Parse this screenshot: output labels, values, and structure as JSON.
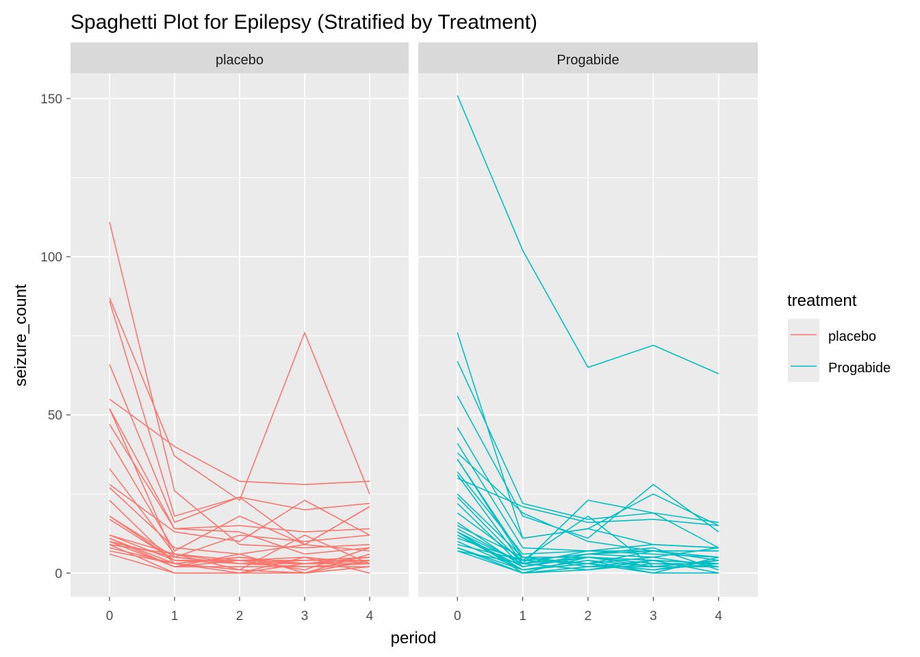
{
  "chart_data": {
    "type": "line",
    "title": "Spaghetti Plot for Epilepsy (Stratified by Treatment)",
    "xlabel": "period",
    "ylabel": "seizure_count",
    "x": [
      0,
      1,
      2,
      3,
      4
    ],
    "x_ticks": [
      "0",
      "1",
      "2",
      "3",
      "4"
    ],
    "y_ticks": [
      "0",
      "50",
      "100",
      "150"
    ],
    "xlim": [
      -0.6,
      4.6
    ],
    "ylim": [
      -7.5,
      158
    ],
    "grid": true,
    "legend": {
      "title": "treatment",
      "position": "right",
      "entries": [
        {
          "label": "placebo",
          "color": "#F8766D"
        },
        {
          "label": "Progabide",
          "color": "#00BFC4"
        }
      ]
    },
    "panels": [
      {
        "label": "placebo",
        "color": "#F8766D",
        "series": [
          {
            "values": [
              111,
              26,
              9,
              8,
              9
            ]
          },
          {
            "values": [
              87,
              37,
              23,
              76,
              25
            ]
          },
          {
            "values": [
              86,
              18,
              24,
              20,
              22
            ]
          },
          {
            "values": [
              66,
              16,
              24,
              9,
              21
            ]
          },
          {
            "values": [
              55,
              40,
              29,
              28,
              29
            ]
          },
          {
            "values": [
              52,
              14,
              15,
              13,
              14
            ]
          },
          {
            "values": [
              52,
              5,
              12,
              10,
              12
            ]
          },
          {
            "values": [
              47,
              14,
              13,
              6,
              8
            ]
          },
          {
            "values": [
              42,
              7,
              18,
              9,
              21
            ]
          },
          {
            "values": [
              33,
              6,
              4,
              5,
              3
            ]
          },
          {
            "values": [
              28,
              13,
              10,
              23,
              12
            ]
          },
          {
            "values": [
              27,
              8,
              6,
              9,
              7
            ]
          },
          {
            "values": [
              23,
              3,
              5,
              3,
              4
            ]
          },
          {
            "values": [
              18,
              5,
              3,
              3,
              3
            ]
          },
          {
            "values": [
              18,
              4,
              4,
              1,
              8
            ]
          },
          {
            "values": [
              17,
              4,
              4,
              3,
              4
            ]
          },
          {
            "values": [
              12,
              6,
              3,
              2,
              3
            ]
          },
          {
            "values": [
              12,
              4,
              3,
              4,
              4
            ]
          },
          {
            "values": [
              11,
              2,
              4,
              4,
              5
            ]
          },
          {
            "values": [
              10,
              2,
              2,
              2,
              2
            ]
          },
          {
            "values": [
              10,
              5,
              3,
              3,
              3
            ]
          },
          {
            "values": [
              9,
              0,
              0,
              3,
              5
            ]
          },
          {
            "values": [
              8,
              3,
              5,
              3,
              3
            ]
          },
          {
            "values": [
              7,
              3,
              0,
              0,
              4
            ]
          },
          {
            "values": [
              6,
              0,
              0,
              5,
              0
            ]
          },
          {
            "values": [
              11,
              3,
              1,
              12,
              3
            ]
          },
          {
            "values": [
              10,
              2,
              6,
              0,
              6
            ]
          },
          {
            "values": [
              9,
              6,
              1,
              0,
              2
            ]
          }
        ]
      },
      {
        "label": "Progabide",
        "color": "#00BFC4",
        "series": [
          {
            "values": [
              151,
              102,
              65,
              72,
              63
            ]
          },
          {
            "values": [
              76,
              11,
              14,
              9,
              8
            ]
          },
          {
            "values": [
              67,
              22,
              17,
              19,
              16
            ]
          },
          {
            "values": [
              56,
              18,
              11,
              28,
              13
            ]
          },
          {
            "values": [
              46,
              11,
              14,
              25,
              15
            ]
          },
          {
            "values": [
              41,
              8,
              7,
              9,
              8
            ]
          },
          {
            "values": [
              38,
              19,
              10,
              7,
              7
            ]
          },
          {
            "values": [
              36,
              4,
              3,
              7,
              5
            ]
          },
          {
            "values": [
              32,
              6,
              7,
              7,
              7
            ]
          },
          {
            "values": [
              31,
              3,
              23,
              19,
              8
            ]
          },
          {
            "values": [
              25,
              5,
              2,
              2,
              2
            ]
          },
          {
            "values": [
              24,
              3,
              7,
              6,
              5
            ]
          },
          {
            "values": [
              22,
              2,
              5,
              3,
              3
            ]
          },
          {
            "values": [
              19,
              4,
              18,
              2,
              4
            ]
          },
          {
            "values": [
              16,
              2,
              6,
              7,
              4
            ]
          },
          {
            "values": [
              14,
              3,
              1,
              4,
              3
            ]
          },
          {
            "values": [
              13,
              1,
              4,
              2,
              4
            ]
          },
          {
            "values": [
              13,
              0,
              1,
              3,
              2
            ]
          },
          {
            "values": [
              12,
              2,
              6,
              5,
              8
            ]
          },
          {
            "values": [
              11,
              4,
              6,
              8,
              1
            ]
          },
          {
            "values": [
              10,
              1,
              3,
              1,
              4
            ]
          },
          {
            "values": [
              9,
              4,
              3,
              1,
              3
            ]
          },
          {
            "values": [
              8,
              1,
              4,
              0,
              0
            ]
          },
          {
            "values": [
              8,
              0,
              2,
              4,
              0
            ]
          },
          {
            "values": [
              7,
              3,
              1,
              4,
              3
            ]
          },
          {
            "values": [
              7,
              0,
              5,
              2,
              4
            ]
          },
          {
            "values": [
              30,
              21,
              16,
              17,
              15
            ]
          },
          {
            "values": [
              15,
              5,
              3,
              5,
              2
            ]
          },
          {
            "values": [
              13,
              3,
              5,
              4,
              3
            ]
          },
          {
            "values": [
              12,
              1,
              3,
              0,
              5
            ]
          },
          {
            "values": [
              36,
              5,
              5,
              4,
              3
            ]
          }
        ]
      }
    ]
  }
}
